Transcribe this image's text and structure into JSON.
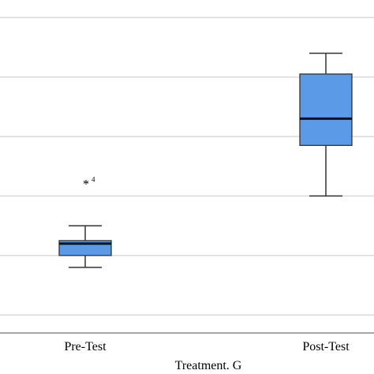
{
  "chart_data": {
    "type": "box",
    "xlabel": "Treatment. G",
    "ylabel": "",
    "categories": [
      "Pre-Test",
      "Post-Test"
    ],
    "ylim": [
      0,
      7
    ],
    "gridlines": [
      1,
      2,
      3,
      4,
      5,
      6
    ],
    "grid": true,
    "legend": "none",
    "box_color": "#5a9ae6",
    "box_edge_color": "#333333",
    "series": [
      {
        "category": "Pre-Test",
        "whisker_low": 1.8,
        "q1": 2.0,
        "median": 2.2,
        "q3": 2.25,
        "whisker_high": 2.5,
        "outliers": [
          {
            "value": 3.2,
            "label": "4"
          }
        ]
      },
      {
        "category": "Post-Test",
        "whisker_low": 3.0,
        "q1": 3.85,
        "median": 4.3,
        "q3": 5.05,
        "whisker_high": 5.4,
        "outliers": []
      }
    ]
  }
}
